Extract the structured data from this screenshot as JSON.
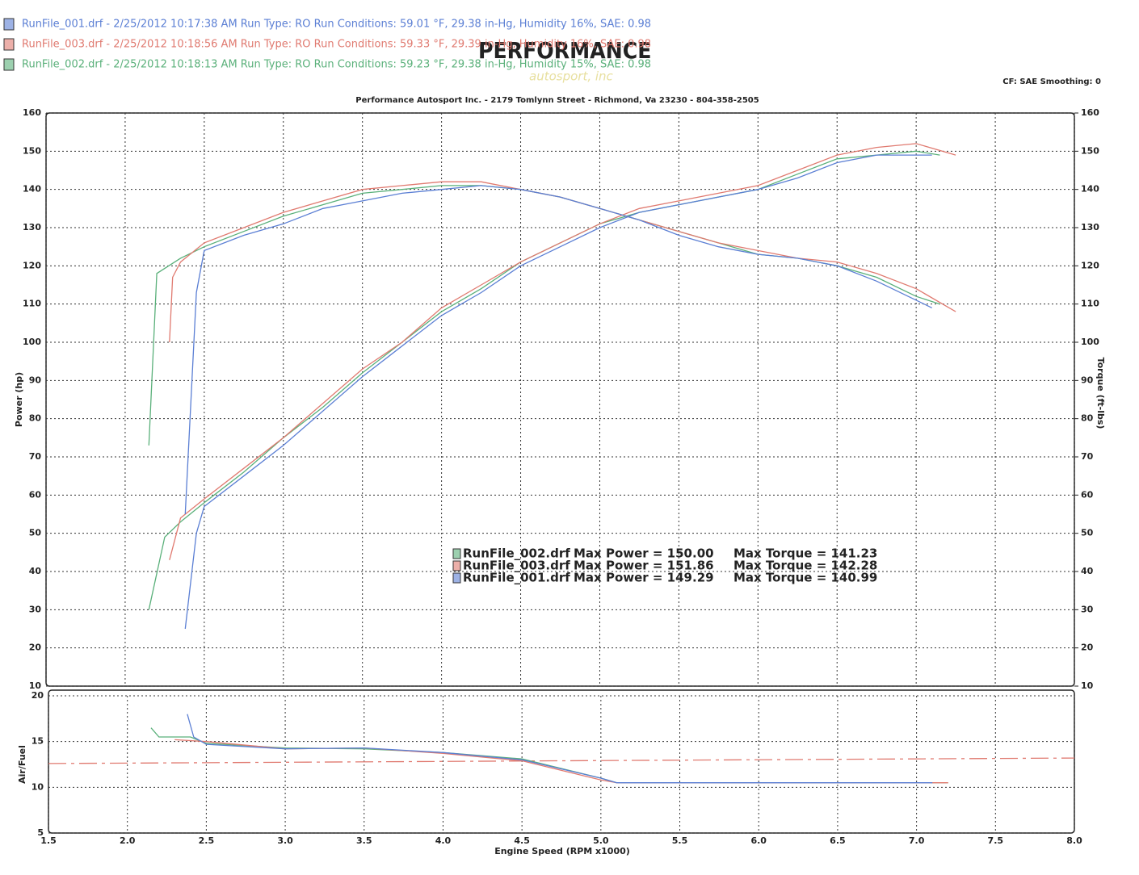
{
  "header": {
    "runs": [
      "RunFile_001.drf - 2/25/2012 10:17:38 AM  Run Type: RO  Run Conditions: 59.01 °F, 29.38 in-Hg,  Humidity  16%, SAE: 0.98",
      "RunFile_003.drf - 2/25/2012 10:18:56 AM  Run Type: RO  Run Conditions: 59.33 °F, 29.39 in-Hg,  Humidity  16%, SAE: 0.98",
      "RunFile_002.drf - 2/25/2012 10:18:13 AM  Run Type: RO  Run Conditions: 59.23 °F, 29.38 in-Hg,  Humidity  15%, SAE: 0.98"
    ],
    "run_colors": [
      "#5b7fd4",
      "#e07a70",
      "#5ab07a"
    ],
    "logo": "PERFORMANCE",
    "logo_sub": "autosport, inc",
    "settings": "CF: SAE  Smoothing: 0"
  },
  "chart_data": [
    {
      "type": "line",
      "title": "Performance Autosport Inc. - 2179 Tomlynn Street - Richmond, Va 23230 - 804-358-2505",
      "y_label": "Power (hp)",
      "y2_label": "Torque (ft-lbs)",
      "xlim": [
        1.5,
        8.0
      ],
      "xticks": [
        1.5,
        {
          "value": 2,
          "label": "2.0"
        },
        2.5,
        {
          "value": 3,
          "label": "3.0"
        },
        3.5,
        {
          "value": 4,
          "label": "4.0"
        },
        4.5,
        {
          "value": 5,
          "label": "5.0"
        },
        5.5,
        {
          "value": 6,
          "label": "6.0"
        },
        6.5,
        {
          "value": 7,
          "label": "7.0"
        },
        7.5,
        {
          "value": 8,
          "label": "8.0"
        }
      ],
      "ylim": [
        10,
        160
      ],
      "yticks": [
        10,
        20,
        30,
        40,
        50,
        60,
        70,
        80,
        90,
        100,
        110,
        120,
        130,
        140,
        150,
        160
      ],
      "y2lim": [
        10,
        160
      ],
      "y2ticks": [
        10,
        20,
        30,
        40,
        50,
        60,
        70,
        80,
        90,
        100,
        110,
        120,
        130,
        140,
        150,
        160
      ],
      "grid": true,
      "series": [
        {
          "color": "#5ab07a",
          "axis": "y",
          "x": [
            2.15,
            2.25,
            2.35,
            2.5,
            2.75,
            3.0,
            3.25,
            3.5,
            3.75,
            4.0,
            4.25,
            4.5,
            4.75,
            5.0,
            5.25,
            5.5,
            5.75,
            6.0,
            6.25,
            6.5,
            6.75,
            7.0,
            7.15
          ],
          "values": [
            30,
            49,
            53,
            58,
            66,
            75,
            83,
            92,
            100,
            108,
            114,
            121,
            126,
            131,
            134,
            136,
            138,
            140,
            144,
            148,
            149,
            150,
            149
          ]
        },
        {
          "color": "#e07a70",
          "axis": "y",
          "x": [
            2.28,
            2.35,
            2.5,
            2.75,
            3.0,
            3.25,
            3.5,
            3.75,
            4.0,
            4.25,
            4.5,
            4.75,
            5.0,
            5.25,
            5.5,
            5.75,
            6.0,
            6.25,
            6.5,
            6.75,
            7.0,
            7.25
          ],
          "values": [
            43,
            54,
            59,
            67,
            75,
            84,
            93,
            100,
            109,
            115,
            121,
            126,
            131,
            135,
            137,
            139,
            141,
            145,
            149,
            151,
            152,
            149
          ]
        },
        {
          "color": "#5b7fd4",
          "axis": "y",
          "x": [
            2.38,
            2.45,
            2.5,
            2.75,
            3.0,
            3.25,
            3.5,
            3.75,
            4.0,
            4.25,
            4.5,
            4.75,
            5.0,
            5.25,
            5.5,
            5.75,
            6.0,
            6.25,
            6.5,
            6.75,
            7.0,
            7.1
          ],
          "values": [
            25,
            50,
            57,
            65,
            73,
            82,
            91,
            99,
            107,
            113,
            120,
            125,
            130,
            134,
            136,
            138,
            140,
            143,
            147,
            149,
            149,
            149
          ]
        },
        {
          "color": "#5ab07a",
          "axis": "y2",
          "x": [
            2.15,
            2.2,
            2.35,
            2.5,
            2.75,
            3.0,
            3.25,
            3.5,
            3.75,
            4.0,
            4.25,
            4.5,
            4.75,
            5.0,
            5.25,
            5.5,
            5.75,
            6.0,
            6.25,
            6.5,
            6.75,
            7.0,
            7.15
          ],
          "values": [
            73,
            118,
            122,
            125,
            129,
            133,
            136,
            139,
            140,
            141,
            141,
            140,
            138,
            135,
            132,
            129,
            126,
            123,
            122,
            120,
            117,
            112,
            110
          ]
        },
        {
          "color": "#e07a70",
          "axis": "y2",
          "x": [
            2.28,
            2.3,
            2.35,
            2.5,
            2.75,
            3.0,
            3.25,
            3.5,
            3.75,
            4.0,
            4.25,
            4.5,
            4.75,
            5.0,
            5.25,
            5.5,
            5.75,
            6.0,
            6.25,
            6.5,
            6.75,
            7.0,
            7.25
          ],
          "values": [
            100,
            117,
            121,
            126,
            130,
            134,
            137,
            140,
            141,
            142,
            142,
            140,
            138,
            135,
            132,
            129,
            126,
            124,
            122,
            121,
            118,
            114,
            108
          ]
        },
        {
          "color": "#5b7fd4",
          "axis": "y2",
          "x": [
            2.38,
            2.45,
            2.5,
            2.75,
            3.0,
            3.25,
            3.5,
            3.75,
            4.0,
            4.25,
            4.5,
            4.75,
            5.0,
            5.25,
            5.5,
            5.75,
            6.0,
            6.25,
            6.5,
            6.75,
            7.0,
            7.1
          ],
          "values": [
            55,
            113,
            124,
            128,
            131,
            135,
            137,
            139,
            140,
            141,
            140,
            138,
            135,
            132,
            128,
            125,
            123,
            122,
            120,
            116,
            111,
            109
          ]
        }
      ],
      "annotations": [
        {
          "file": "RunFile_002.drf",
          "power": "Max Power = 150.00",
          "torque": "Max Torque = 141.23",
          "color": "#5ab07a"
        },
        {
          "file": "RunFile_003.drf",
          "power": "Max Power = 151.86",
          "torque": "Max Torque = 142.28",
          "color": "#e07a70"
        },
        {
          "file": "RunFile_001.drf",
          "power": "Max Power = 149.29",
          "torque": "Max Torque = 140.99",
          "color": "#5b7fd4"
        }
      ]
    },
    {
      "type": "line",
      "y_label": "Air/Fuel",
      "x_label": "Engine Speed (RPM x1000)",
      "xlim": [
        1.5,
        8.0
      ],
      "xticks": [
        1.5,
        {
          "value": 2,
          "label": "2.0"
        },
        2.5,
        {
          "value": 3,
          "label": "3.0"
        },
        3.5,
        {
          "value": 4,
          "label": "4.0"
        },
        4.5,
        {
          "value": 5,
          "label": "5.0"
        },
        5.5,
        {
          "value": 6,
          "label": "6.0"
        },
        6.5,
        {
          "value": 7,
          "label": "7.0"
        },
        7.5,
        {
          "value": 8,
          "label": "8.0"
        }
      ],
      "ylim": [
        5,
        20
      ],
      "yticks": [
        5,
        10,
        15,
        20
      ],
      "grid": true,
      "series": [
        {
          "color": "#e07a70",
          "dashed": true,
          "x": [
            1.5,
            8.0
          ],
          "values": [
            12.6,
            13.2
          ]
        },
        {
          "color": "#5ab07a",
          "x": [
            2.15,
            2.2,
            2.4,
            2.5,
            3.0,
            3.5,
            4.0,
            4.5,
            5.0,
            5.1,
            6.0,
            7.0,
            7.2
          ],
          "values": [
            16.5,
            15.5,
            15.5,
            14.8,
            14.3,
            14.2,
            13.8,
            13.1,
            11,
            10.5,
            10.5,
            10.5,
            10.5
          ]
        },
        {
          "color": "#e07a70",
          "x": [
            2.3,
            2.5,
            3.0,
            3.5,
            4.0,
            4.5,
            5.0,
            5.1,
            7.2
          ],
          "values": [
            15.2,
            15,
            14.2,
            14.3,
            13.7,
            12.9,
            10.8,
            10.5,
            10.5
          ]
        },
        {
          "color": "#5b7fd4",
          "x": [
            2.38,
            2.42,
            2.5,
            3.0,
            3.5,
            4.0,
            4.5,
            5.0,
            5.1,
            7.1
          ],
          "values": [
            18,
            15.5,
            14.7,
            14.2,
            14.3,
            13.8,
            13,
            11,
            10.5,
            10.5
          ]
        }
      ]
    }
  ]
}
